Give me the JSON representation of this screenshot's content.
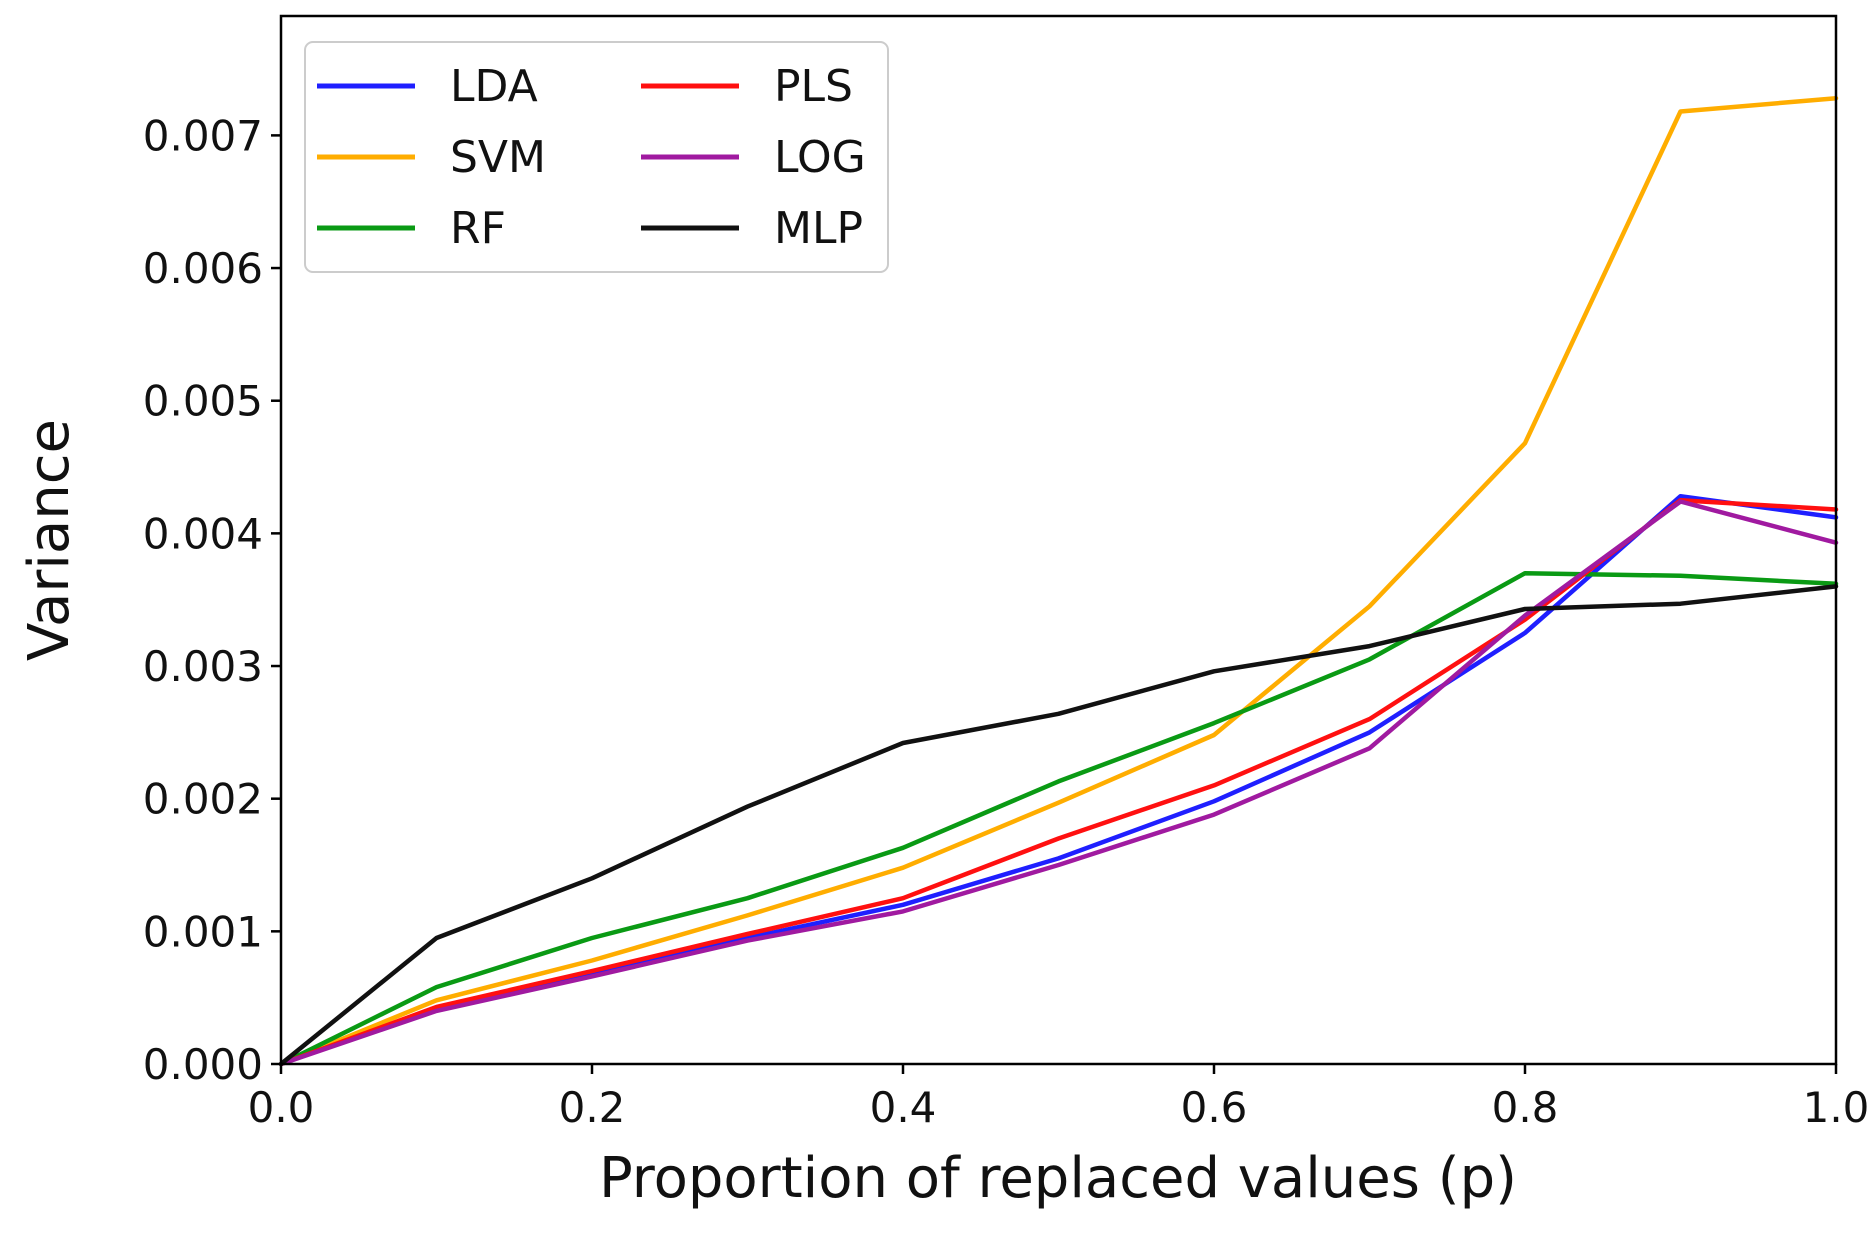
{
  "chart_data": {
    "type": "line",
    "title": "",
    "xlabel": "Proportion of replaced values (p)",
    "ylabel": "Variance",
    "xlim": [
      0.0,
      1.0
    ],
    "ylim": [
      0.0,
      0.0079
    ],
    "x_ticks": [
      "0.0",
      "0.2",
      "0.4",
      "0.6",
      "0.8",
      "1.0"
    ],
    "y_ticks": [
      "0.000",
      "0.001",
      "0.002",
      "0.003",
      "0.004",
      "0.005",
      "0.006",
      "0.007"
    ],
    "grid": false,
    "legend_position": "top-left",
    "x": [
      0.0,
      0.1,
      0.2,
      0.3,
      0.4,
      0.5,
      0.6,
      0.7,
      0.8,
      0.9,
      1.0
    ],
    "series": [
      {
        "name": "LDA",
        "color": "#1f1fff",
        "values": [
          0.0,
          0.00042,
          0.00068,
          0.00095,
          0.0012,
          0.00155,
          0.00198,
          0.0025,
          0.00325,
          0.00428,
          0.00412
        ]
      },
      {
        "name": "SVM",
        "color": "#ffad00",
        "values": [
          0.0,
          0.00048,
          0.00078,
          0.00112,
          0.00148,
          0.00197,
          0.00248,
          0.00345,
          0.00468,
          0.00718,
          0.00728
        ]
      },
      {
        "name": "RF",
        "color": "#0a9a14",
        "values": [
          0.0,
          0.00058,
          0.00095,
          0.00125,
          0.00163,
          0.00213,
          0.00257,
          0.00305,
          0.0037,
          0.00368,
          0.00362
        ]
      },
      {
        "name": "PLS",
        "color": "#ff1010",
        "values": [
          0.0,
          0.00043,
          0.0007,
          0.00098,
          0.00125,
          0.0017,
          0.0021,
          0.0026,
          0.00335,
          0.00425,
          0.00418
        ]
      },
      {
        "name": "LOG",
        "color": "#a01aa0",
        "values": [
          0.0,
          0.0004,
          0.00066,
          0.00093,
          0.00115,
          0.0015,
          0.00188,
          0.00238,
          0.00338,
          0.00424,
          0.00393
        ]
      },
      {
        "name": "MLP",
        "color": "#111111",
        "values": [
          0.0,
          0.00095,
          0.0014,
          0.00194,
          0.00242,
          0.00264,
          0.00296,
          0.00315,
          0.00343,
          0.00347,
          0.0036
        ]
      }
    ]
  }
}
